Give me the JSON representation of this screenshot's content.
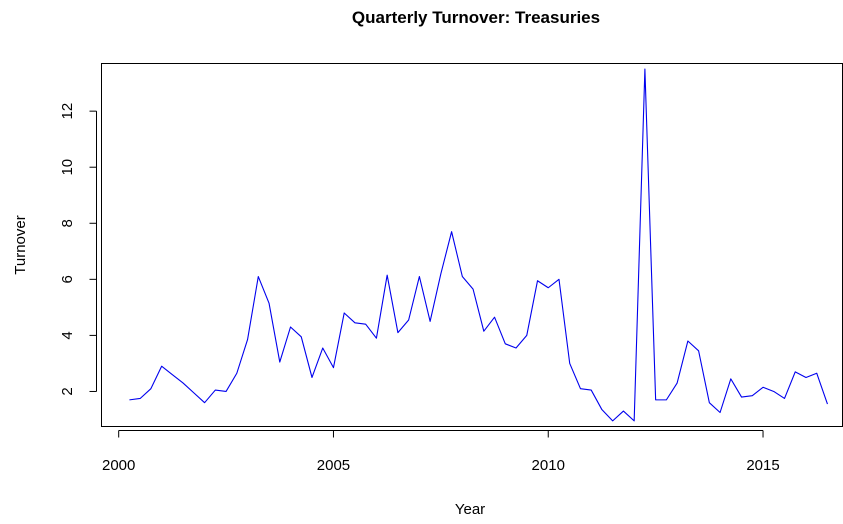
{
  "chart_data": {
    "type": "line",
    "title": "Quarterly Turnover: Treasuries",
    "xlabel": "Year",
    "ylabel": "Turnover",
    "xlim": [
      1999.6,
      2016.85
    ],
    "ylim": [
      0.75,
      13.7
    ],
    "x_ticks": [
      2000,
      2005,
      2010,
      2015
    ],
    "y_ticks": [
      2,
      4,
      6,
      8,
      10,
      12
    ],
    "grid": false,
    "line_color": "#0000ee",
    "series": [
      {
        "x": [
          2000.25,
          2000.5,
          2000.75,
          2001.0,
          2001.25,
          2001.5,
          2001.75,
          2002.0,
          2002.25,
          2002.5,
          2002.75,
          2003.0,
          2003.25,
          2003.5,
          2003.75,
          2004.0,
          2004.25,
          2004.5,
          2004.75,
          2005.0,
          2005.25,
          2005.5,
          2005.75,
          2006.0,
          2006.25,
          2006.5,
          2006.75,
          2007.0,
          2007.25,
          2007.5,
          2007.75,
          2008.0,
          2008.25,
          2008.5,
          2008.75,
          2009.0,
          2009.25,
          2009.5,
          2009.75,
          2010.0,
          2010.25,
          2010.5,
          2010.75,
          2011.0,
          2011.25,
          2011.5,
          2011.75,
          2012.0,
          2012.25,
          2012.5,
          2012.75,
          2013.0,
          2013.25,
          2013.5,
          2013.75,
          2014.0,
          2014.25,
          2014.5,
          2014.75,
          2015.0,
          2015.25,
          2015.5,
          2015.75,
          2016.0,
          2016.25,
          2016.5
        ],
        "values": [
          1.7,
          1.75,
          2.1,
          2.9,
          2.6,
          2.3,
          1.95,
          1.6,
          2.05,
          2.0,
          2.65,
          3.85,
          6.1,
          5.15,
          3.05,
          4.3,
          3.95,
          2.5,
          3.55,
          2.85,
          4.8,
          4.45,
          4.4,
          3.9,
          6.15,
          4.1,
          4.55,
          6.1,
          4.5,
          6.2,
          7.7,
          6.1,
          5.65,
          4.15,
          4.65,
          3.7,
          3.55,
          4.0,
          5.95,
          5.7,
          6.0,
          3.0,
          2.1,
          2.05,
          1.35,
          0.95,
          1.3,
          0.95,
          13.5,
          1.7,
          1.7,
          2.3,
          3.8,
          3.45,
          1.6,
          1.25,
          2.45,
          1.8,
          1.85,
          2.15,
          2.0,
          1.75,
          2.7,
          2.5,
          2.65,
          1.55
        ]
      }
    ]
  }
}
